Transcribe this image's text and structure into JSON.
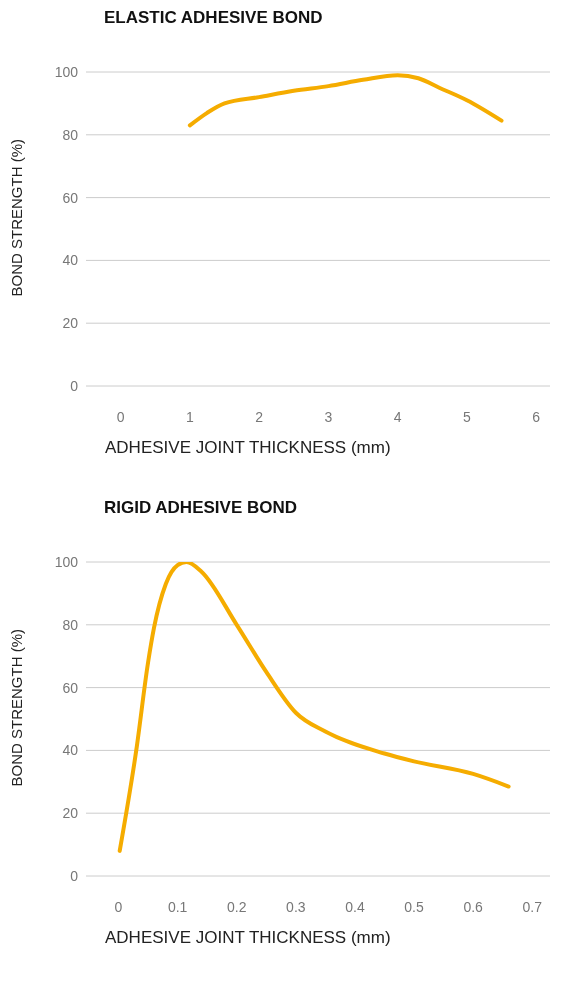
{
  "chart_data": [
    {
      "type": "line",
      "title": "ELASTIC ADHESIVE BOND",
      "xlabel": "ADHESIVE JOINT THICKNESS (mm)",
      "ylabel": "BOND STRENGTH (%)",
      "x": [
        1,
        1.25,
        1.5,
        2,
        2.5,
        3,
        3.5,
        4,
        4.3,
        4.6,
        5,
        5.5
      ],
      "series": [
        {
          "color": "#f5ac00",
          "values": [
            83,
            87,
            90,
            92,
            94,
            95.5,
            97.5,
            99,
            98,
            95,
            91,
            84.5
          ]
        }
      ],
      "xlim": [
        -0.5,
        6.2
      ],
      "xticks": [
        0,
        1,
        2,
        3,
        4,
        5,
        6
      ],
      "ylim": [
        0,
        100
      ],
      "yticks": [
        0,
        20,
        40,
        60,
        80,
        100
      ],
      "grid": "y"
    },
    {
      "type": "line",
      "title": "RIGID ADHESIVE BOND",
      "xlabel": "ADHESIVE JOINT THICKNESS (mm)",
      "ylabel": "BOND STRENGTH (%)",
      "x": [
        0.002,
        0.03,
        0.05,
        0.06,
        0.08,
        0.1,
        0.115,
        0.14,
        0.2,
        0.25,
        0.3,
        0.35,
        0.45,
        0.5,
        0.6,
        0.66
      ],
      "series": [
        {
          "color": "#f5ac00",
          "values": [
            8,
            40,
            68,
            79,
            93,
            99,
            100,
            97,
            80,
            65,
            52,
            46,
            39,
            36.5,
            32.5,
            28.5
          ]
        }
      ],
      "xlim": [
        -0.055,
        0.73
      ],
      "xticks": [
        0,
        0.1,
        0.2,
        0.3,
        0.4,
        0.5,
        0.6,
        0.7
      ],
      "ylim": [
        0,
        100
      ],
      "yticks": [
        0,
        20,
        40,
        60,
        80,
        100
      ],
      "grid": "y"
    }
  ]
}
